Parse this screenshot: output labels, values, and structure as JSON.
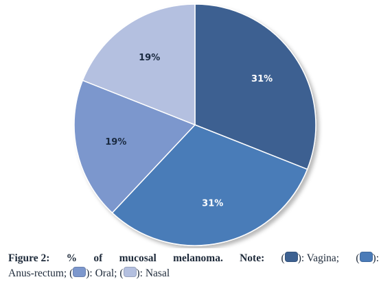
{
  "chart_data": {
    "type": "pie",
    "title": "",
    "slices": [
      {
        "name": "Vagina",
        "value": 31,
        "label": "31%",
        "color": "#3d6191",
        "label_color": "#ffffff"
      },
      {
        "name": "Anus-rectum",
        "value": 31,
        "label": "31%",
        "color": "#4a7bb8",
        "label_color": "#ffffff"
      },
      {
        "name": "Oral",
        "value": 19,
        "label": "19%",
        "color": "#7c97cd",
        "label_color": "#1a2a40"
      },
      {
        "name": "Nasal",
        "value": 19,
        "label": "19%",
        "color": "#b4c0e0",
        "label_color": "#1a2a40"
      }
    ],
    "start_angle_deg": 0,
    "direction": "clockwise"
  },
  "caption": {
    "figure_label": "Figure 2:",
    "words": [
      "%",
      "of",
      "mucosal",
      "melanoma.",
      "Note:"
    ],
    "items": [
      {
        "open": "(",
        "close": "): Vagina;"
      },
      {
        "open": "(",
        "close": "):"
      },
      {
        "open": "Anus-rectum; (",
        "close": "): Oral;"
      },
      {
        "open": "(",
        "close": "): Nasal"
      }
    ]
  }
}
